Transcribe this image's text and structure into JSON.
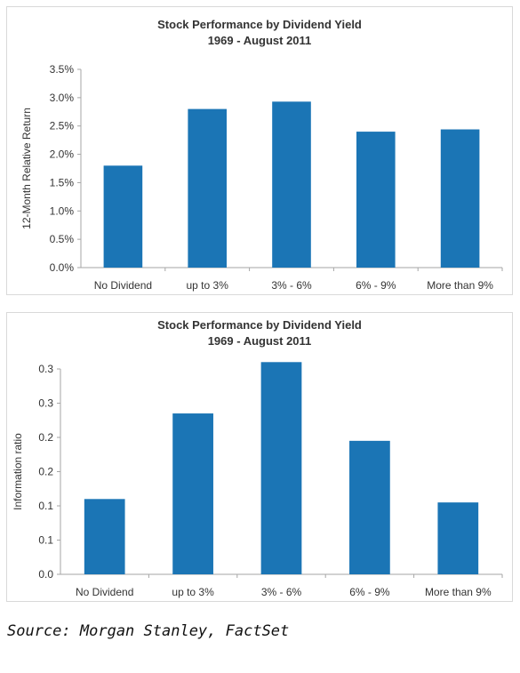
{
  "colors": {
    "bar": "#1b75b5",
    "axis": "#a6a6a6",
    "text": "#333333"
  },
  "chart_data": [
    {
      "type": "bar",
      "title": "Stock Performance by Dividend Yield",
      "subtitle": "1969 - August 2011",
      "ylabel": "12-Month Relative Return",
      "categories": [
        "No Dividend",
        "up to 3%",
        "3% - 6%",
        "6% - 9%",
        "More than 9%"
      ],
      "values": [
        1.8,
        2.8,
        2.93,
        2.4,
        2.44
      ],
      "ylim": [
        0,
        3.5
      ],
      "yticks": [
        "0.0%",
        "0.5%",
        "1.0%",
        "1.5%",
        "2.0%",
        "2.5%",
        "3.0%",
        "3.5%"
      ],
      "grid": false
    },
    {
      "type": "bar",
      "title": "Stock Performance by Dividend Yield",
      "subtitle": "1969 - August 2011",
      "ylabel": "Information ratio",
      "categories": [
        "No Dividend",
        "up to 3%",
        "3% - 6%",
        "6% - 9%",
        "More than 9%"
      ],
      "values": [
        0.11,
        0.235,
        0.31,
        0.195,
        0.105
      ],
      "ylim": [
        0,
        0.3
      ],
      "yticks": [
        "0.0",
        "0.1",
        "0.1",
        "0.2",
        "0.2",
        "0.3",
        "0.3"
      ],
      "grid": false
    }
  ],
  "source": "Source: Morgan Stanley, FactSet"
}
